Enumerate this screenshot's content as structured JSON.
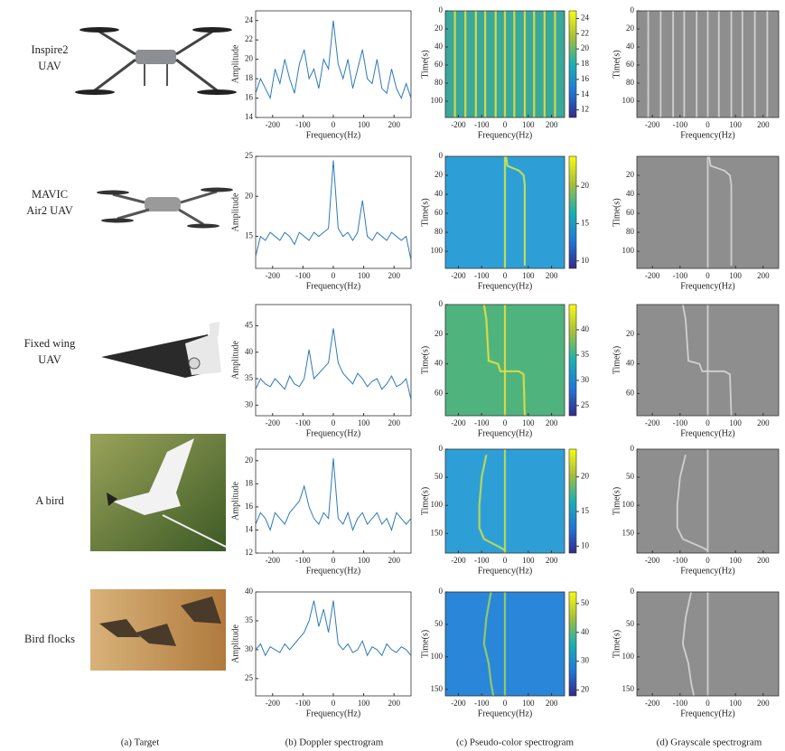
{
  "captions": [
    "(a) Target",
    "(b) Doppler spectrogram",
    "(c) Pseudo-color spectrogram",
    "(d) Grayscale spectrogram"
  ],
  "rows": [
    {
      "target": [
        "Inspire2",
        "UAV"
      ],
      "doppler": {
        "type": "line",
        "xlabel": "Frequency(Hz)",
        "ylabel": "Amplitude",
        "color": "#2e7ab8",
        "x": [
          -256,
          -240,
          -224,
          -208,
          -192,
          -176,
          -160,
          -144,
          -128,
          -112,
          -96,
          -80,
          -64,
          -48,
          -32,
          -16,
          0,
          16,
          32,
          48,
          64,
          80,
          96,
          112,
          128,
          144,
          160,
          176,
          192,
          208,
          224,
          240,
          256
        ],
        "values": [
          16.5,
          18,
          17,
          16,
          19,
          17.5,
          20,
          18,
          16.5,
          19.5,
          21,
          18,
          19,
          17,
          20,
          19,
          24,
          19.5,
          18,
          20,
          17,
          19,
          21,
          18,
          17.5,
          20,
          17,
          16.5,
          19,
          17,
          16,
          17.5,
          16
        ],
        "xlim": [
          -256,
          256
        ],
        "xticks": [
          -200,
          -100,
          0,
          100,
          200
        ],
        "ylim": [
          14,
          25
        ],
        "yticks": [
          14,
          16,
          18,
          20,
          22,
          24
        ]
      },
      "pseudo": {
        "type": "heatmap",
        "xlabel": "Frequency(Hz)",
        "ylabel": "Time(s)",
        "color": "#3aa89a",
        "trace_color": "#eee03a",
        "xlim": [
          -256,
          256
        ],
        "xticks": [
          -200,
          -100,
          0,
          100,
          200
        ],
        "ylim": [
          0,
          118
        ],
        "yticks": [
          0,
          20,
          40,
          60,
          80,
          100
        ],
        "clim": [
          11,
          25
        ],
        "cticks": [
          12,
          14,
          16,
          18,
          20,
          22,
          24
        ],
        "traces": [
          {
            "x": [
              -215,
              -215
            ],
            "t": [
              0,
              118
            ]
          },
          {
            "x": [
              -170,
              -170
            ],
            "t": [
              0,
              118
            ]
          },
          {
            "x": [
              -125,
              -125
            ],
            "t": [
              0,
              118
            ]
          },
          {
            "x": [
              -85,
              -85
            ],
            "t": [
              0,
              118
            ]
          },
          {
            "x": [
              -40,
              -40
            ],
            "t": [
              0,
              118
            ]
          },
          {
            "x": [
              0,
              0
            ],
            "t": [
              0,
              118
            ]
          },
          {
            "x": [
              40,
              40
            ],
            "t": [
              0,
              118
            ]
          },
          {
            "x": [
              85,
              85
            ],
            "t": [
              0,
              118
            ]
          },
          {
            "x": [
              125,
              125
            ],
            "t": [
              0,
              118
            ]
          },
          {
            "x": [
              170,
              170
            ],
            "t": [
              0,
              118
            ]
          },
          {
            "x": [
              215,
              215
            ],
            "t": [
              0,
              118
            ]
          }
        ]
      },
      "gray": {
        "type": "heatmap",
        "xlabel": "Frequency(Hz)",
        "ylabel": "Time(s)",
        "xlim": [
          -256,
          256
        ],
        "xticks": [
          -200,
          -100,
          0,
          100,
          200
        ],
        "ylim": [
          0,
          118
        ],
        "yticks": [
          0,
          20,
          40,
          60,
          80,
          100
        ]
      }
    },
    {
      "target": [
        "MAVIC",
        "Air2 UAV"
      ],
      "doppler": {
        "type": "line",
        "xlabel": "Frequency(Hz)",
        "ylabel": "Amplitude",
        "color": "#2e7ab8",
        "x": [
          -256,
          -240,
          -224,
          -208,
          -192,
          -176,
          -160,
          -144,
          -128,
          -112,
          -96,
          -80,
          -64,
          -48,
          -32,
          -16,
          0,
          16,
          32,
          48,
          64,
          80,
          96,
          112,
          128,
          144,
          160,
          176,
          192,
          208,
          224,
          240,
          256
        ],
        "values": [
          12.5,
          15,
          14.5,
          15.5,
          15,
          14.5,
          15.5,
          15,
          14,
          15.5,
          15,
          14.5,
          15.5,
          15,
          15.5,
          16,
          24.5,
          16,
          15,
          15.5,
          14.5,
          15.5,
          19.5,
          15,
          14.5,
          15.5,
          15,
          14.5,
          15.5,
          15,
          14.5,
          15,
          12
        ],
        "xlim": [
          -256,
          256
        ],
        "xticks": [
          -200,
          -100,
          0,
          100,
          200
        ],
        "ylim": [
          11,
          25
        ],
        "yticks": [
          15,
          20,
          25
        ]
      },
      "pseudo": {
        "type": "heatmap",
        "xlabel": "Frequency(Hz)",
        "ylabel": "Time(s)",
        "color": "#2e9fd6",
        "trace_color": "#d4e84a",
        "xlim": [
          -256,
          256
        ],
        "xticks": [
          -200,
          -100,
          0,
          100,
          200
        ],
        "ylim": [
          0,
          118
        ],
        "yticks": [
          0,
          20,
          40,
          60,
          80,
          100
        ],
        "clim": [
          9,
          24
        ],
        "cticks": [
          10,
          15,
          20
        ],
        "traces": [
          {
            "x": [
              0,
              0
            ],
            "t": [
              0,
              118
            ]
          },
          {
            "x": [
              5,
              10,
              60,
              80,
              85,
              85
            ],
            "t": [
              0,
              10,
              15,
              20,
              30,
              115
            ]
          }
        ]
      },
      "gray": {
        "type": "heatmap",
        "xlabel": "Frequency(Hz)",
        "ylabel": "Time(s)",
        "xlim": [
          -256,
          256
        ],
        "xticks": [
          -200,
          -100,
          0,
          100,
          200
        ],
        "ylim": [
          0,
          118
        ],
        "yticks": [
          20,
          40,
          60,
          80,
          100
        ]
      }
    },
    {
      "target": [
        "Fixed wing",
        "UAV"
      ],
      "doppler": {
        "type": "line",
        "xlabel": "Frequency(Hz)",
        "ylabel": "Amplitude",
        "color": "#2e7ab8",
        "x": [
          -256,
          -240,
          -224,
          -208,
          -192,
          -176,
          -160,
          -144,
          -128,
          -112,
          -96,
          -80,
          -64,
          -48,
          -32,
          -16,
          0,
          16,
          32,
          48,
          64,
          80,
          96,
          112,
          128,
          144,
          160,
          176,
          192,
          208,
          224,
          240,
          256
        ],
        "values": [
          33,
          35,
          34,
          33.5,
          35,
          34,
          33,
          35.5,
          34,
          33.5,
          35,
          40.5,
          35,
          36,
          37,
          38,
          44.5,
          38,
          36,
          35,
          34,
          36,
          35,
          33.5,
          34.5,
          35,
          33,
          34,
          35.5,
          33.5,
          34,
          35,
          31
        ],
        "xlim": [
          -256,
          256
        ],
        "xticks": [
          -200,
          -100,
          0,
          100,
          200
        ],
        "ylim": [
          28,
          49
        ],
        "yticks": [
          30,
          35,
          40,
          45
        ]
      },
      "pseudo": {
        "type": "heatmap",
        "xlabel": "Frequency(Hz)",
        "ylabel": "Time(s)",
        "color": "#4fb37e",
        "trace_color": "#e9e23e",
        "xlim": [
          -256,
          256
        ],
        "xticks": [
          -200,
          -100,
          0,
          100,
          200
        ],
        "ylim": [
          0,
          75
        ],
        "yticks": [
          0,
          20,
          40,
          60
        ],
        "clim": [
          23,
          45
        ],
        "cticks": [
          25,
          30,
          35,
          40
        ],
        "traces": [
          {
            "x": [
              0,
              0
            ],
            "t": [
              0,
              75
            ]
          },
          {
            "x": [
              -90,
              -80,
              -70,
              -30,
              -20,
              60,
              80,
              85
            ],
            "t": [
              0,
              10,
              38,
              40,
              45,
              45,
              47,
              75
            ]
          }
        ]
      },
      "gray": {
        "type": "heatmap",
        "xlabel": "Frequency(Hz)",
        "ylabel": "Time(s)",
        "xlim": [
          -256,
          256
        ],
        "xticks": [
          -200,
          -100,
          0,
          100,
          200
        ],
        "ylim": [
          0,
          75
        ],
        "yticks": [
          20,
          40,
          60
        ]
      }
    },
    {
      "target": [
        "A bird"
      ],
      "doppler": {
        "type": "line",
        "xlabel": "Frequency(Hz)",
        "ylabel": "Amplitude",
        "color": "#2e7ab8",
        "x": [
          -256,
          -240,
          -224,
          -208,
          -192,
          -176,
          -160,
          -144,
          -128,
          -112,
          -96,
          -80,
          -64,
          -48,
          -32,
          -16,
          0,
          16,
          32,
          48,
          64,
          80,
          96,
          112,
          128,
          144,
          160,
          176,
          192,
          208,
          224,
          240,
          256
        ],
        "values": [
          14.5,
          15.5,
          15,
          14,
          15.5,
          15,
          14.5,
          15.5,
          16,
          16.5,
          17.8,
          16,
          15,
          14.5,
          15.5,
          15,
          20.2,
          15,
          14.5,
          15.5,
          14,
          15,
          15.5,
          14.5,
          15,
          15.5,
          14.5,
          15,
          14,
          15.5,
          15,
          14.5,
          15
        ],
        "xlim": [
          -256,
          256
        ],
        "xticks": [
          -200,
          -100,
          0,
          100,
          200
        ],
        "ylim": [
          12,
          21
        ],
        "yticks": [
          12,
          14,
          16,
          18,
          20
        ]
      },
      "pseudo": {
        "type": "heatmap",
        "xlabel": "Frequency(Hz)",
        "ylabel": "Time(s)",
        "color": "#2e9fd6",
        "trace_color": "#c9e04a",
        "xlim": [
          -256,
          256
        ],
        "xticks": [
          -200,
          -100,
          0,
          100,
          200
        ],
        "ylim": [
          0,
          185
        ],
        "yticks": [
          0,
          50,
          100,
          150
        ],
        "clim": [
          9,
          24
        ],
        "cticks": [
          10,
          15,
          20
        ],
        "traces": [
          {
            "x": [
              0,
              0
            ],
            "t": [
              0,
              185
            ]
          },
          {
            "x": [
              -80,
              -100,
              -110,
              -110,
              -90,
              -20,
              0
            ],
            "t": [
              10,
              50,
              100,
              140,
              160,
              175,
              180
            ]
          }
        ]
      },
      "gray": {
        "type": "heatmap",
        "xlabel": "Frequency(Hz)",
        "ylabel": "Time(s)",
        "xlim": [
          -256,
          256
        ],
        "xticks": [
          -200,
          -100,
          0,
          100,
          200
        ],
        "ylim": [
          0,
          185
        ],
        "yticks": [
          0,
          50,
          100,
          150
        ]
      }
    },
    {
      "target": [
        "Bird flocks"
      ],
      "doppler": {
        "type": "line",
        "xlabel": "Frequency(Hz)",
        "ylabel": "Amplitude",
        "color": "#2e7ab8",
        "x": [
          -256,
          -240,
          -224,
          -208,
          -192,
          -176,
          -160,
          -144,
          -128,
          -112,
          -96,
          -80,
          -64,
          -48,
          -32,
          -16,
          0,
          16,
          32,
          48,
          64,
          80,
          96,
          112,
          128,
          144,
          160,
          176,
          192,
          208,
          224,
          240,
          256
        ],
        "values": [
          30,
          31,
          29,
          30.5,
          30,
          29.5,
          31,
          30,
          31,
          32,
          33,
          35,
          38.5,
          34,
          37,
          33,
          38.5,
          31,
          30,
          31,
          29.5,
          30,
          31.5,
          29,
          30.5,
          30,
          29,
          31,
          30,
          29.5,
          30.5,
          30,
          29
        ],
        "xlim": [
          -256,
          256
        ],
        "xticks": [
          -200,
          -100,
          0,
          100,
          200
        ],
        "ylim": [
          22,
          40
        ],
        "yticks": [
          25,
          30,
          35,
          40
        ]
      },
      "pseudo": {
        "type": "heatmap",
        "xlabel": "Frequency(Hz)",
        "ylabel": "Time(s)",
        "color": "#2a86d8",
        "trace_color": "#9fd65a",
        "xlim": [
          -256,
          256
        ],
        "xticks": [
          -200,
          -100,
          0,
          100,
          200
        ],
        "ylim": [
          0,
          160
        ],
        "yticks": [
          0,
          50,
          100,
          150
        ],
        "clim": [
          18,
          54
        ],
        "cticks": [
          20,
          30,
          40,
          50
        ],
        "traces": [
          {
            "x": [
              0,
              0
            ],
            "t": [
              0,
              160
            ]
          },
          {
            "x": [
              -60,
              -80,
              -90,
              -70,
              -60,
              -50
            ],
            "t": [
              0,
              40,
              80,
              110,
              140,
              160
            ]
          }
        ]
      },
      "gray": {
        "type": "heatmap",
        "xlabel": "Frequency(Hz)",
        "ylabel": "Time(s)",
        "xlim": [
          -256,
          256
        ],
        "xticks": [
          -200,
          -100,
          0,
          100,
          200
        ],
        "ylim": [
          0,
          160
        ],
        "yticks": [
          0,
          50,
          100,
          150
        ]
      }
    }
  ]
}
